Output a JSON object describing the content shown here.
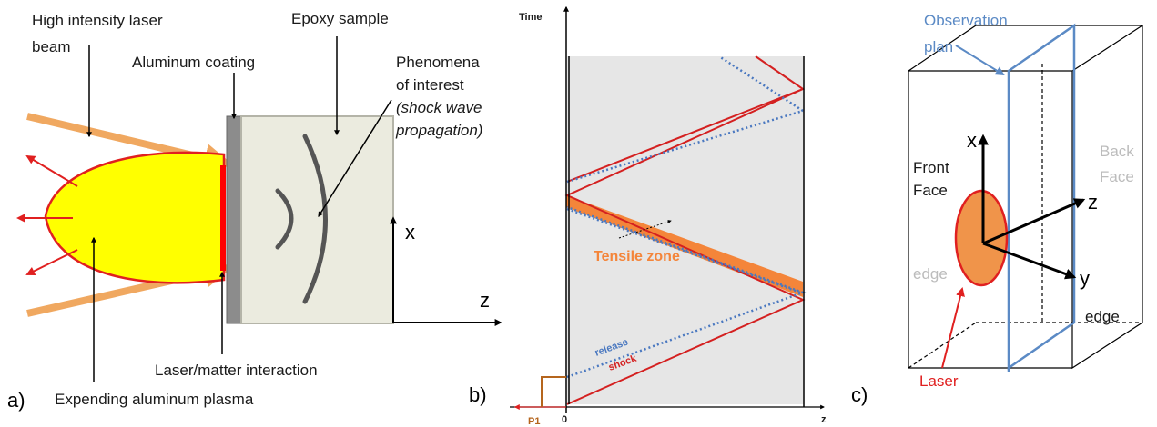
{
  "panel_a": {
    "tag": "a)",
    "laser_label_line1": "High intensity laser",
    "laser_label_line2": "beam",
    "coating_label": "Aluminum coating",
    "epoxy_label": "Epoxy sample",
    "phenomena_line1": "Phenomena",
    "phenomena_line2": "of interest",
    "phenomena_line3": "(shock wave",
    "phenomena_line4": "propagation)",
    "axis_x": "x",
    "axis_z": "z",
    "interaction_label": "Laser/matter interaction",
    "plasma_label": "Expending aluminum plasma",
    "colors": {
      "laser": "#f0a860",
      "plasma_fill": "#ffff00",
      "plasma_edge": "#e02020",
      "sample": "#ebebdf",
      "coating": "#8c8c8c"
    }
  },
  "panel_b": {
    "tag": "b)",
    "time_label": "Time",
    "z_label": "z",
    "zero_label": "0",
    "p1_label": "P1",
    "tensile_label": "Tensile zone",
    "release_label": "release",
    "shock_label": "shock",
    "colors": {
      "shock": "#d42020",
      "release": "#4a78c0",
      "tensile": "#f4853a",
      "background": "#e6e6e6"
    }
  },
  "panel_c": {
    "tag": "c)",
    "observation_line1": "Observation",
    "observation_line2": "plan",
    "front_line1": "Front",
    "front_line2": "Face",
    "back_line1": "Back",
    "back_line2": "Face",
    "axis_x": "x",
    "axis_y": "y",
    "axis_z": "z",
    "edge_left": "edge",
    "edge_right": "edge",
    "laser_label": "Laser",
    "colors": {
      "plane": "#5b8ac5",
      "spot": "#f0944a",
      "spot_edge": "#e02020"
    }
  }
}
